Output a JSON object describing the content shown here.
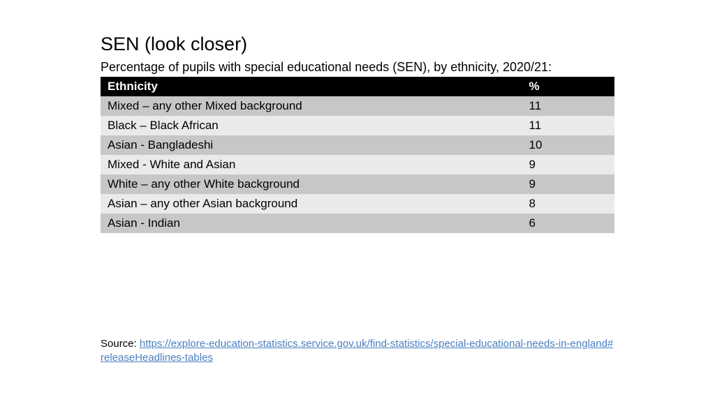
{
  "title": "SEN (look closer)",
  "subtitle": "Percentage of pupils with special educational needs (SEN), by ethnicity, 2020/21:",
  "table": {
    "type": "table",
    "header_bg": "#000000",
    "header_fg": "#ffffff",
    "row_colors": [
      "#c7c7c7",
      "#eaeaea"
    ],
    "columns": [
      "Ethnicity",
      "%"
    ],
    "col_widths_pct": [
      82,
      18
    ],
    "font_size_pt": 17,
    "rows": [
      [
        "Mixed – any other Mixed background",
        "11"
      ],
      [
        "Black – Black African",
        "11"
      ],
      [
        "Asian - Bangladeshi",
        "10"
      ],
      [
        "Mixed - White and Asian",
        "9"
      ],
      [
        "White – any other White background",
        "9"
      ],
      [
        "Asian – any other Asian background",
        "8"
      ],
      [
        "Asian - Indian",
        "6"
      ]
    ]
  },
  "source_label": "Source: ",
  "source_link_text": "https://explore-education-statistics.service.gov.uk/find-statistics/special-educational-needs-in-england#releaseHeadlines-tables",
  "link_color": "#4a7fbf"
}
